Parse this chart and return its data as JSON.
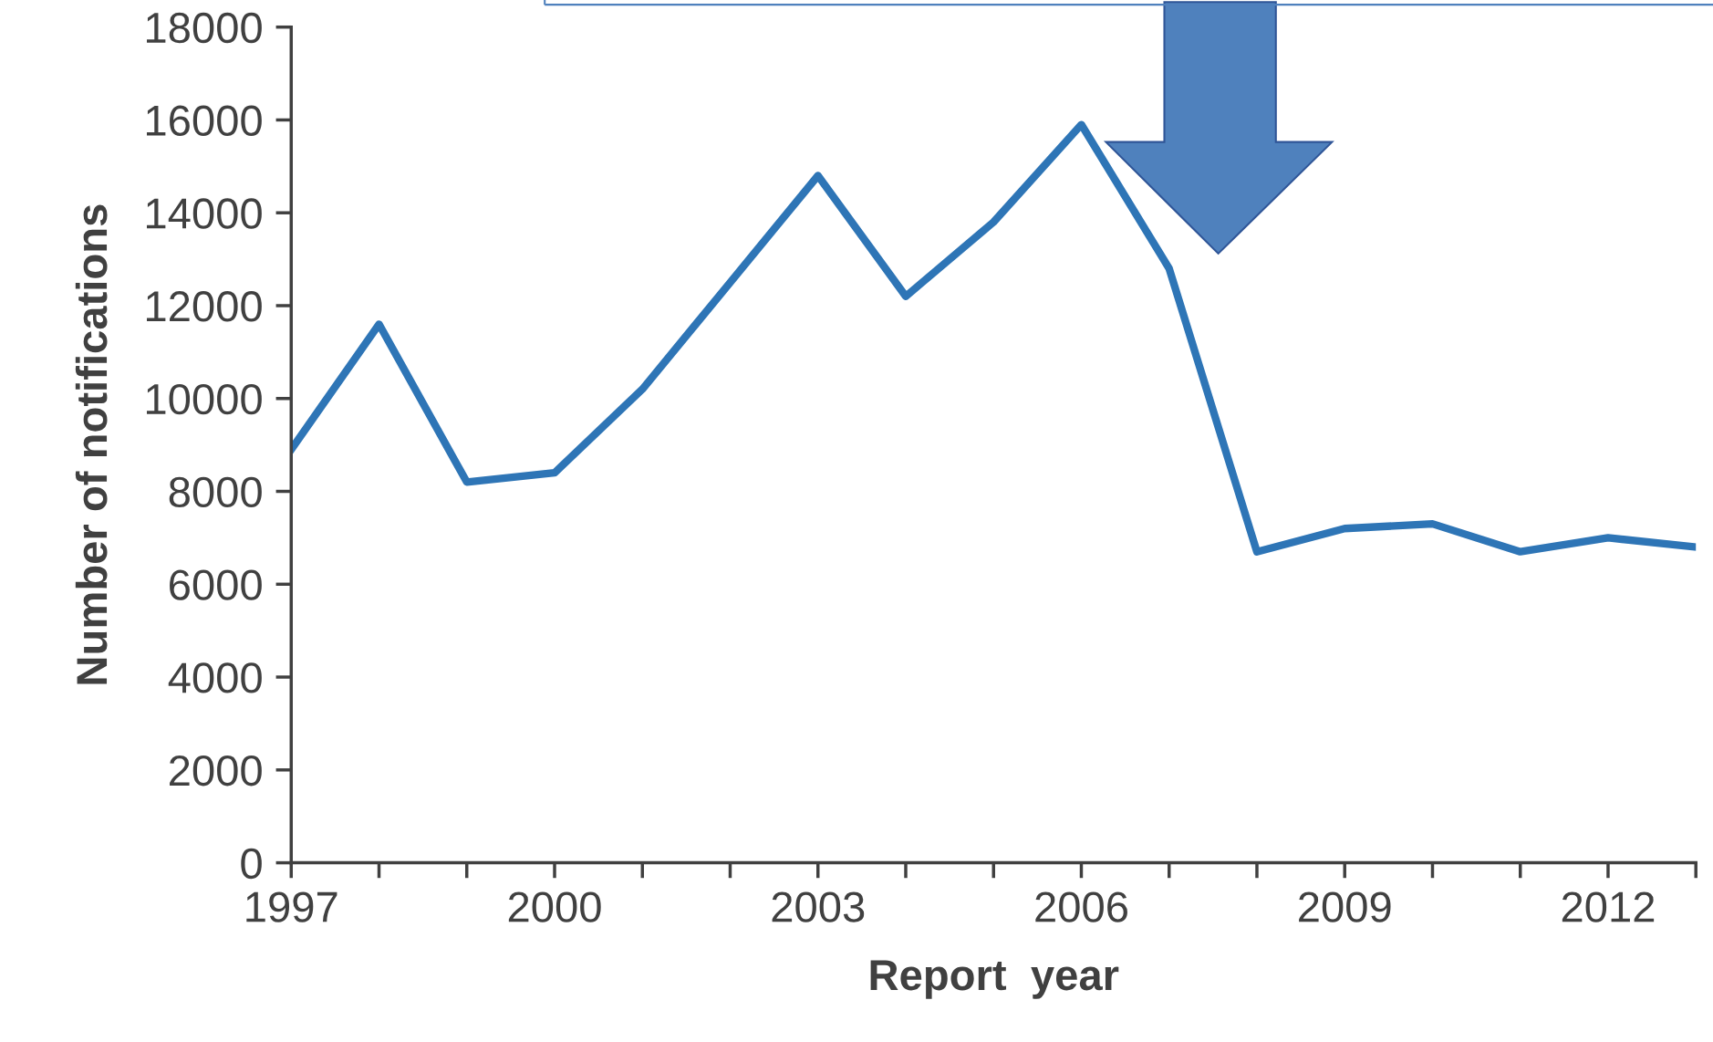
{
  "chart_data": {
    "type": "line",
    "xlabel": "Report  year",
    "ylabel": "Number of notifications",
    "x": [
      1997,
      1998,
      1999,
      2000,
      2001,
      2002,
      2003,
      2004,
      2005,
      2006,
      2007,
      2008,
      2009,
      2010,
      2011,
      2012,
      2013
    ],
    "series": [
      {
        "color": "#2e75b6",
        "values": [
          8900,
          11600,
          8200,
          8400,
          10200,
          12500,
          14800,
          12200,
          13800,
          15900,
          12800,
          6700,
          7200,
          7300,
          6700,
          7000,
          6800
        ]
      }
    ],
    "xlim": [
      1997,
      2013
    ],
    "xticks": [
      1997,
      2000,
      2003,
      2006,
      2009,
      2012
    ],
    "ylim": [
      0,
      18000
    ],
    "yticks": [
      0,
      2000,
      4000,
      6000,
      8000,
      10000,
      12000,
      14000,
      16000,
      18000
    ],
    "grid": false,
    "marker": "none",
    "line_style": "solid"
  }
}
